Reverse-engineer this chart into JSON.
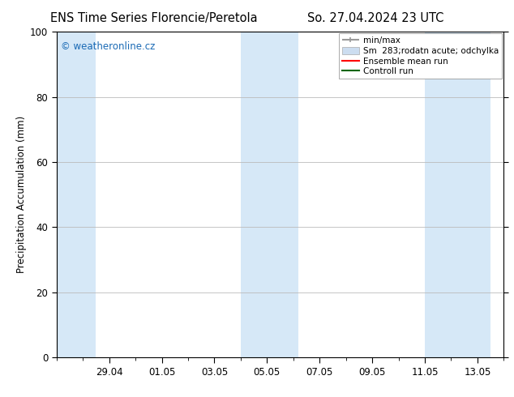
{
  "title_left": "ENS Time Series Florencie/Peretola",
  "title_right": "So. 27.04.2024 23 UTC",
  "ylabel": "Precipitation Accumulation (mm)",
  "ylim": [
    0,
    100
  ],
  "yticks": [
    0,
    20,
    40,
    60,
    80,
    100
  ],
  "background_color": "#ffffff",
  "plot_bg_color": "#ffffff",
  "watermark_text": "© weatheronline.cz",
  "watermark_color": "#1a6ab5",
  "legend_entries": [
    {
      "label": "min/max",
      "color": "#999999",
      "lw": 1.5
    },
    {
      "label": "Sm  283;rodatn acute; odchylka",
      "color": "#ccddf0",
      "lw": 6
    },
    {
      "label": "Ensemble mean run",
      "color": "#ff0000",
      "lw": 1.5
    },
    {
      "label": "Controll run",
      "color": "#006600",
      "lw": 1.5
    }
  ],
  "shade_color": "#d6e8f7",
  "x_tick_labels": [
    "29.04",
    "01.05",
    "03.05",
    "05.05",
    "07.05",
    "09.05",
    "11.05",
    "13.05"
  ],
  "x_tick_offsets": [
    2,
    4,
    6,
    8,
    10,
    12,
    14,
    16
  ],
  "shade_bands": [
    {
      "x_start": 0.0,
      "x_end": 1.5
    },
    {
      "x_start": 7.0,
      "x_end": 9.2
    },
    {
      "x_start": 14.0,
      "x_end": 16.5
    }
  ],
  "xlim_start": 0.0,
  "xlim_end": 16.5
}
